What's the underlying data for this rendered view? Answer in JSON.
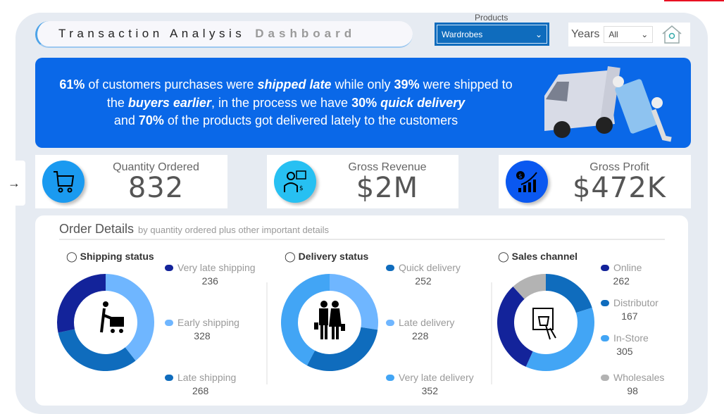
{
  "header": {
    "title_part1": "Transaction Analysis",
    "title_part2": "Dashboard"
  },
  "filters": {
    "products_label": "Products",
    "products_value": "Wardrobes",
    "years_label": "Years",
    "years_value": "All",
    "home_icon": "home-location-icon"
  },
  "banner": {
    "p1": "61%",
    "t1": " of customers purchases were ",
    "b1": "shipped late",
    "t2": " while only ",
    "p2": "39%",
    "t3": "  were shipped to the ",
    "b2": "buyers earlier",
    "t4": ", in the process we have ",
    "p3": "30%",
    "b3": " quick delivery",
    "t5": " and ",
    "p4": "70%",
    "t6": " of the products got delivered lately to the customers"
  },
  "kpis": [
    {
      "label": "Quantity Ordered",
      "value": "832",
      "icon": "shopping-cart-icon",
      "color": "#1a9af0"
    },
    {
      "label": "Gross Revenue",
      "value": "$2M",
      "icon": "businessman-chart-icon",
      "color": "#27c0f2"
    },
    {
      "label": "Gross Profit",
      "value": "$472K",
      "icon": "profit-chart-icon",
      "color": "#0a58f0"
    }
  ],
  "order_details": {
    "title": "Order Details",
    "subtitle": "by quantity ordered plus other important details"
  },
  "chart_data": [
    {
      "type": "pie",
      "title": "Shipping status",
      "donut": true,
      "series": [
        {
          "name": "Very late shipping",
          "value": 236,
          "color": "#13239a"
        },
        {
          "name": "Early shipping",
          "value": 328,
          "color": "#6fb6ff"
        },
        {
          "name": "Late shipping",
          "value": 268,
          "color": "#0f6cbd"
        }
      ],
      "draw_order": [
        1,
        2,
        0
      ]
    },
    {
      "type": "pie",
      "title": "Delivery status",
      "donut": true,
      "series": [
        {
          "name": "Quick delivery",
          "value": 252,
          "color": "#0f6cbd"
        },
        {
          "name": "Late delivery",
          "value": 228,
          "color": "#6fb6ff"
        },
        {
          "name": "Very late delivery",
          "value": 352,
          "color": "#42a5f5"
        }
      ],
      "draw_order": [
        1,
        0,
        2
      ]
    },
    {
      "type": "pie",
      "title": "Sales channel",
      "donut": true,
      "series": [
        {
          "name": "Online",
          "value": 262,
          "color": "#13239a"
        },
        {
          "name": "Distributor",
          "value": 167,
          "color": "#0f6cbd"
        },
        {
          "name": "In-Store",
          "value": 305,
          "color": "#42a5f5"
        },
        {
          "name": "Wholesales",
          "value": 98,
          "color": "#b3b3b3"
        }
      ],
      "draw_order": [
        1,
        2,
        0,
        3
      ]
    }
  ]
}
